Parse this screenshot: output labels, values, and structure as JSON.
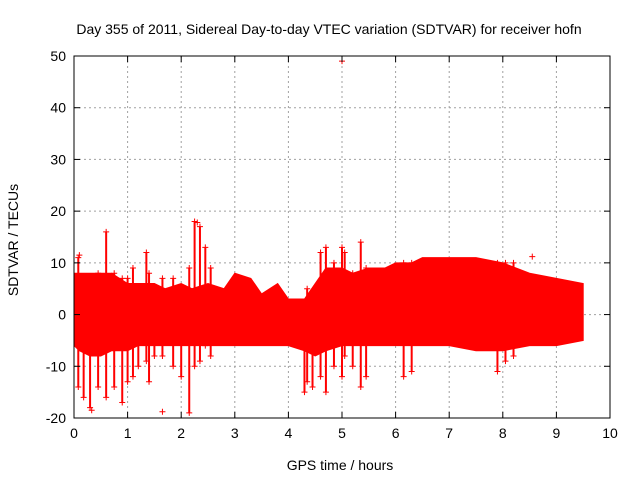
{
  "chart_data": {
    "type": "scatter",
    "title": "Day 355 of 2011, Sidereal Day-to-day VTEC variation (SDTVAR) for receiver hofn",
    "xlabel": "GPS time / hours",
    "ylabel": "SDTVAR / TECUs",
    "xlim": [
      0,
      10
    ],
    "ylim": [
      -20,
      50
    ],
    "x_ticks": [
      "0",
      "1",
      "2",
      "3",
      "4",
      "5",
      "6",
      "7",
      "8",
      "9",
      "10"
    ],
    "y_ticks": [
      "-20",
      "-10",
      "0",
      "10",
      "20",
      "30",
      "40",
      "50"
    ],
    "grid": true,
    "marker": "+",
    "series_color": "#ff0000",
    "envelope": {
      "x": [
        0.0,
        0.1,
        0.3,
        0.5,
        0.7,
        1.0,
        1.2,
        1.5,
        1.7,
        2.0,
        2.2,
        2.5,
        2.8,
        3.0,
        3.3,
        3.5,
        3.8,
        4.0,
        4.3,
        4.5,
        4.7,
        5.0,
        5.2,
        5.5,
        5.8,
        6.0,
        6.3,
        6.5,
        7.0,
        7.5,
        8.0,
        8.5,
        9.0,
        9.5
      ],
      "upper": [
        8,
        8,
        8,
        8,
        8,
        6,
        6,
        6,
        5,
        6,
        5,
        6,
        5,
        8,
        7,
        4,
        6,
        3,
        3,
        6,
        9,
        9,
        8,
        9,
        9,
        10,
        10,
        11,
        11,
        11,
        10,
        8,
        7,
        6
      ],
      "lower": [
        -6,
        -7,
        -8,
        -8,
        -7,
        -7,
        -6,
        -6,
        -6,
        -6,
        -6,
        -6,
        -6,
        -6,
        -6,
        -6,
        -6,
        -6,
        -7,
        -8,
        -7,
        -6,
        -6,
        -6,
        -6,
        -6,
        -6,
        -6,
        -6,
        -7,
        -7,
        -6,
        -6,
        -5
      ]
    },
    "spikes": [
      {
        "x": 0.08,
        "low": -14,
        "high": 11
      },
      {
        "x": 0.18,
        "low": -16,
        "high": 7
      },
      {
        "x": 0.3,
        "low": -18,
        "high": 7
      },
      {
        "x": 0.45,
        "low": -14,
        "high": 8
      },
      {
        "x": 0.6,
        "low": -16,
        "high": 16
      },
      {
        "x": 0.75,
        "low": -14,
        "high": 8
      },
      {
        "x": 0.9,
        "low": -17,
        "high": 7
      },
      {
        "x": 1.0,
        "low": -13,
        "high": 7
      },
      {
        "x": 1.1,
        "low": -12,
        "high": 9
      },
      {
        "x": 1.2,
        "low": -10,
        "high": 5
      },
      {
        "x": 1.35,
        "low": -9,
        "high": 12
      },
      {
        "x": 1.4,
        "low": -13,
        "high": 8
      },
      {
        "x": 1.5,
        "low": -8,
        "high": 5
      },
      {
        "x": 1.65,
        "low": -8,
        "high": 7
      },
      {
        "x": 1.85,
        "low": -10,
        "high": 7
      },
      {
        "x": 2.0,
        "low": -12,
        "high": 5
      },
      {
        "x": 2.15,
        "low": -19,
        "high": 9
      },
      {
        "x": 2.25,
        "low": -10,
        "high": 18
      },
      {
        "x": 2.35,
        "low": -9,
        "high": 17
      },
      {
        "x": 2.45,
        "low": -6,
        "high": 13
      },
      {
        "x": 2.55,
        "low": -8,
        "high": 9
      },
      {
        "x": 4.3,
        "low": -15,
        "high": 0
      },
      {
        "x": 4.35,
        "low": -13,
        "high": 5
      },
      {
        "x": 4.45,
        "low": -14,
        "high": 3
      },
      {
        "x": 4.6,
        "low": -12,
        "high": 12
      },
      {
        "x": 4.7,
        "low": -15,
        "high": 13
      },
      {
        "x": 4.85,
        "low": -10,
        "high": 10
      },
      {
        "x": 5.0,
        "low": -12,
        "high": 13
      },
      {
        "x": 5.05,
        "low": -8,
        "high": 12
      },
      {
        "x": 5.2,
        "low": -10,
        "high": 8
      },
      {
        "x": 5.35,
        "low": -14,
        "high": 14
      },
      {
        "x": 5.45,
        "low": -12,
        "high": 9
      },
      {
        "x": 6.15,
        "low": -12,
        "high": 10
      },
      {
        "x": 6.3,
        "low": -11,
        "high": 10
      },
      {
        "x": 7.9,
        "low": -11,
        "high": 10
      },
      {
        "x": 8.05,
        "low": -9,
        "high": 10
      },
      {
        "x": 8.2,
        "low": -8,
        "high": 10
      }
    ],
    "outlier_points": [
      {
        "x": 0.1,
        "y": 11.5
      },
      {
        "x": 0.33,
        "y": -18.5
      },
      {
        "x": 1.65,
        "y": -18.8
      },
      {
        "x": 2.3,
        "y": 17.8
      },
      {
        "x": 5.0,
        "y": 49
      },
      {
        "x": 8.55,
        "y": 11.2
      }
    ]
  }
}
